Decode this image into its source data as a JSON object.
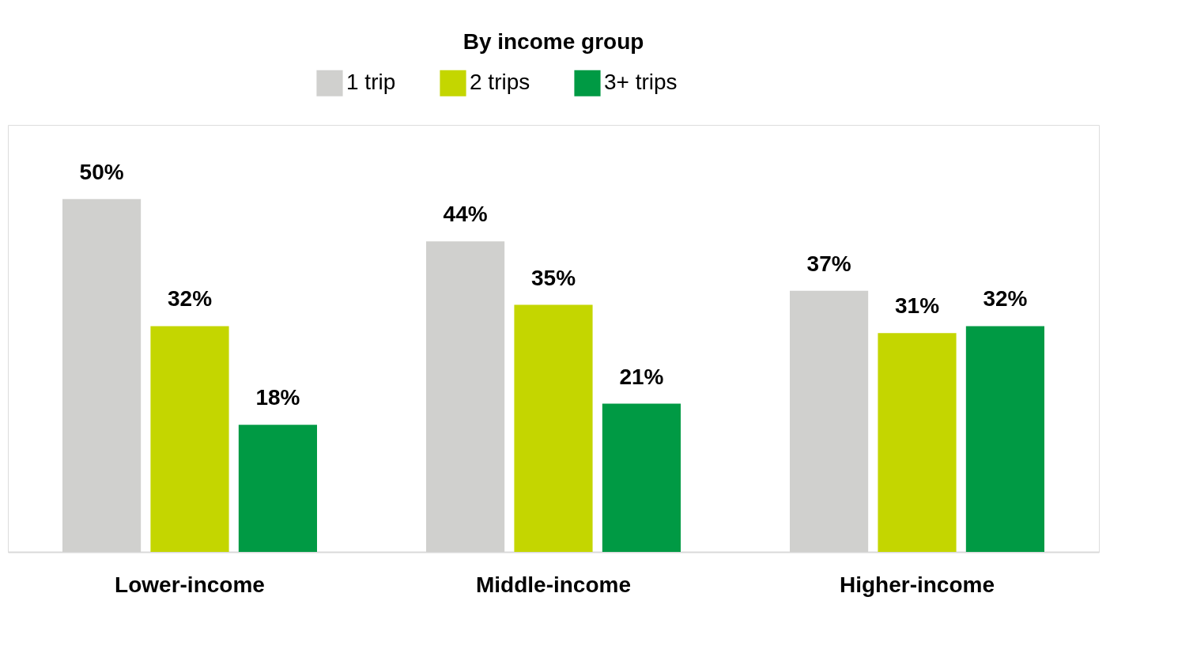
{
  "chart_data": {
    "type": "bar",
    "title": "By income group",
    "categories": [
      "Lower-income",
      "Middle-income",
      "Higher-income"
    ],
    "series": [
      {
        "name": "1 trip",
        "color": "#d0d0ce",
        "values": [
          50,
          44,
          37
        ],
        "value_labels": [
          "50%",
          "44%",
          "37%"
        ]
      },
      {
        "name": "2 trips",
        "color": "#c4d600",
        "values": [
          32,
          35,
          31
        ],
        "value_labels": [
          "32%",
          "35%",
          "31%"
        ]
      },
      {
        "name": "3+ trips",
        "color": "#009a44",
        "values": [
          18,
          21,
          32
        ],
        "value_labels": [
          "18%",
          "21%",
          "32%"
        ]
      }
    ],
    "legend": "top",
    "grid": false
  }
}
